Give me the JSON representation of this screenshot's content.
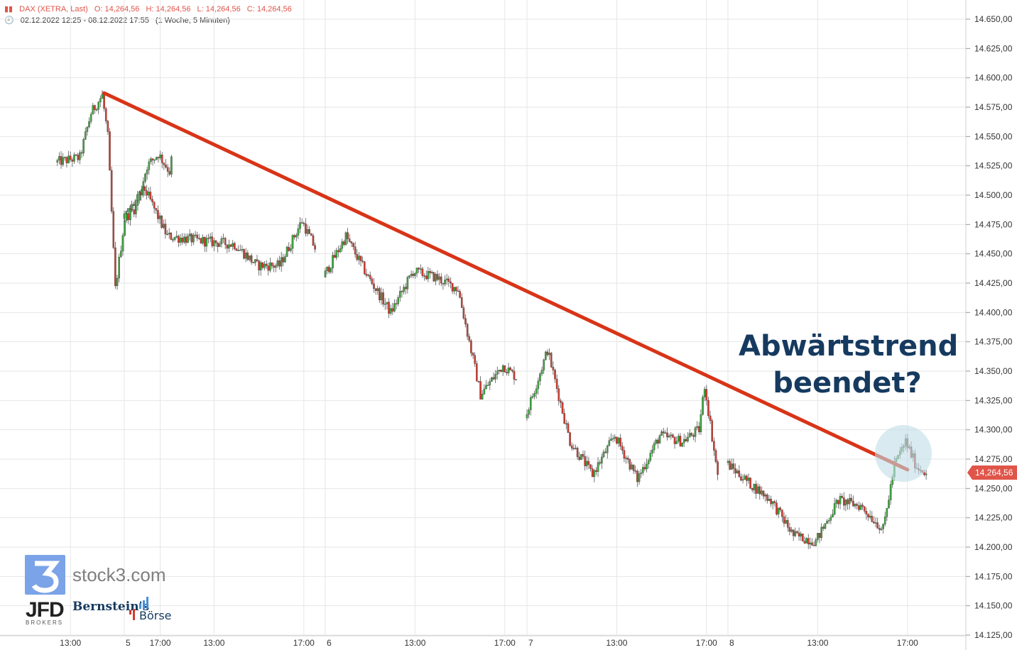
{
  "header": {
    "instrument": "DAX (XETRA, Last)",
    "o": "O: 14,264,56",
    "h": "H: 14,264,56",
    "l": "L: 14,264,56",
    "c": "C: 14,264,56",
    "range": "02.12.2022 12:25 - 08.12.2022 17:55",
    "interval": "(1 Woche, 5 Minuten)"
  },
  "annotation": {
    "line1": "Abwärtstrend",
    "line2": "beendet?"
  },
  "price_tag": "14,264,56",
  "brand": {
    "stock3": "stock3.com",
    "jfd": "JFD",
    "jfd_sub": "BROKERS",
    "bern1": "Bernstein's",
    "bern2": "Börse"
  },
  "colors": {
    "up": "#3aa83a",
    "down": "#d63a2e",
    "trend": "#d83418",
    "grid": "#e6e6e6",
    "tag": "#e0554a",
    "annotation": "#163a5f",
    "circle": "#bfdde6"
  },
  "chart_data": {
    "type": "candlestick",
    "ylim": [
      14125,
      14650
    ],
    "y_ticks": [
      "14.125,00",
      "14.150,00",
      "14.175,00",
      "14.200,00",
      "14.225,00",
      "14.250,00",
      "14.275,00",
      "14.300,00",
      "14.325,00",
      "14.350,00",
      "14.375,00",
      "14.400,00",
      "14.425,00",
      "14.450,00",
      "14.475,00",
      "14.500,00",
      "14.525,00",
      "14.550,00",
      "14.575,00",
      "14.600,00",
      "14.625,00",
      "14.650,00"
    ],
    "x_ticks": [
      "13:00",
      "17:00",
      "5",
      "13:00",
      "17:00",
      "6",
      "13:00",
      "17:00",
      "7",
      "13:00",
      "17:00",
      "8",
      "13:00",
      "17:00"
    ],
    "path": [
      [
        "02.12. 12:25",
        14528
      ],
      [
        "02.12. 13:30",
        14532
      ],
      [
        "02.12. 14:00",
        14570
      ],
      [
        "02.12. 14:30",
        14585
      ],
      [
        "02.12. 14:45",
        14550
      ],
      [
        "02.12. 15:05",
        14420
      ],
      [
        "02.12. 15:30",
        14480
      ],
      [
        "02.12. 16:00",
        14490
      ],
      [
        "02.12. 16:30",
        14525
      ],
      [
        "02.12. 17:00",
        14535
      ],
      [
        "02.12. 17:30",
        14520
      ],
      [
        "02.12. 17:35",
        14530
      ],
      [
        "05.12. 09:00",
        14480
      ],
      [
        "05.12. 10:00",
        14505
      ],
      [
        "05.12. 11:00",
        14465
      ],
      [
        "05.12. 13:00",
        14460
      ],
      [
        "05.12. 14:00",
        14458
      ],
      [
        "05.12. 15:00",
        14440
      ],
      [
        "05.12. 16:00",
        14440
      ],
      [
        "05.12. 17:00",
        14478
      ],
      [
        "05.12. 17:35",
        14455
      ],
      [
        "06.12. 09:00",
        14430
      ],
      [
        "06.12. 10:00",
        14465
      ],
      [
        "06.12. 11:00",
        14430
      ],
      [
        "06.12. 12:00",
        14400
      ],
      [
        "06.12. 13:00",
        14435
      ],
      [
        "06.12. 14:00",
        14430
      ],
      [
        "06.12. 15:00",
        14420
      ],
      [
        "06.12. 16:00",
        14330
      ],
      [
        "06.12. 17:00",
        14355
      ],
      [
        "06.12. 17:35",
        14345
      ],
      [
        "07.12. 09:00",
        14310
      ],
      [
        "07.12. 10:00",
        14368
      ],
      [
        "07.12. 11:00",
        14290
      ],
      [
        "07.12. 12:00",
        14262
      ],
      [
        "07.12. 13:00",
        14295
      ],
      [
        "07.12. 14:00",
        14258
      ],
      [
        "07.12. 15:00",
        14295
      ],
      [
        "07.12. 16:00",
        14290
      ],
      [
        "07.12. 16:45",
        14300
      ],
      [
        "07.12. 17:00",
        14338
      ],
      [
        "07.12. 17:30",
        14272
      ],
      [
        "07.12. 17:35",
        14262
      ],
      [
        "08.12. 09:00",
        14272
      ],
      [
        "08.12. 10:00",
        14255
      ],
      [
        "08.12. 11:00",
        14240
      ],
      [
        "08.12. 12:00",
        14210
      ],
      [
        "08.12. 13:00",
        14205
      ],
      [
        "08.12. 14:00",
        14240
      ],
      [
        "08.12. 15:00",
        14235
      ],
      [
        "08.12. 16:00",
        14215
      ],
      [
        "08.12. 16:30",
        14270
      ],
      [
        "08.12. 17:00",
        14290
      ],
      [
        "08.12. 17:30",
        14268
      ],
      [
        "08.12. 17:55",
        14264.56
      ]
    ],
    "trendline": {
      "from": [
        "02.12. 14:30",
        14587
      ],
      "to": [
        "08.12. 17:00",
        14266
      ]
    },
    "last_price": 14264.56
  }
}
